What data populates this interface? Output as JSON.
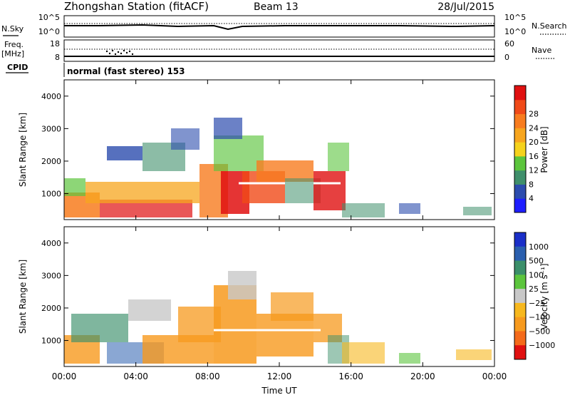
{
  "header": {
    "station": "Zhongshan Station (fitACF)",
    "beam": "Beam 13",
    "date": "28/Jul/2015"
  },
  "summary": {
    "nsky_label": "N.Sky",
    "nsky_ticks": [
      "10^5",
      "10^0"
    ],
    "nsearch_label": "N.Search",
    "nsearch_ticks": [
      "10^5",
      "10^0"
    ],
    "freq_label": "Freq.",
    "freq_unit": "[MHz]",
    "freq_ticks": [
      "18",
      "8"
    ],
    "nave_label": "Nave",
    "nave_ticks": [
      "60",
      "0"
    ],
    "cpid_label": "CPID",
    "cpid_text": "normal (fast stereo) 153"
  },
  "chart_data": [
    {
      "type": "heatmap",
      "ylabel": "Slant Range [km]",
      "xlabel": "",
      "x_ticks": [
        "00:00",
        "04:00",
        "08:00",
        "12:00",
        "16:00",
        "20:00",
        "00:00"
      ],
      "x_range_hours": [
        0,
        24
      ],
      "y_ticks": [
        1000,
        2000,
        3000,
        4000
      ],
      "ylim": [
        200,
        4500
      ],
      "colorbar": {
        "label": "Power [dB]",
        "ticks": [
          "4",
          "8",
          "12",
          "16",
          "20",
          "24",
          "28"
        ],
        "colors": [
          "#1e1eff",
          "#2c4cae",
          "#3f8f6b",
          "#5cc53d",
          "#f5d21c",
          "#f7a51e",
          "#f87c1f",
          "#f04a18",
          "#e01010"
        ]
      }
    },
    {
      "type": "heatmap",
      "ylabel": "Slant Range [km]",
      "xlabel": "Time UT",
      "x_ticks": [
        "00:00",
        "04:00",
        "08:00",
        "12:00",
        "16:00",
        "20:00",
        "00:00"
      ],
      "x_range_hours": [
        0,
        24
      ],
      "y_ticks": [
        1000,
        2000,
        3000,
        4000
      ],
      "ylim": [
        200,
        4500
      ],
      "colorbar": {
        "label": "Velocity [m s⁻¹]",
        "ticks": [
          "1000",
          "500",
          "100",
          "25",
          "−25",
          "−100",
          "−500",
          "−1000"
        ],
        "colors": [
          "#1a2fc8",
          "#2a5fae",
          "#3b8f6a",
          "#5cc53d",
          "#c8c8c8",
          "#f7b81e",
          "#f79a1e",
          "#f46a1a",
          "#e01010"
        ]
      }
    }
  ]
}
